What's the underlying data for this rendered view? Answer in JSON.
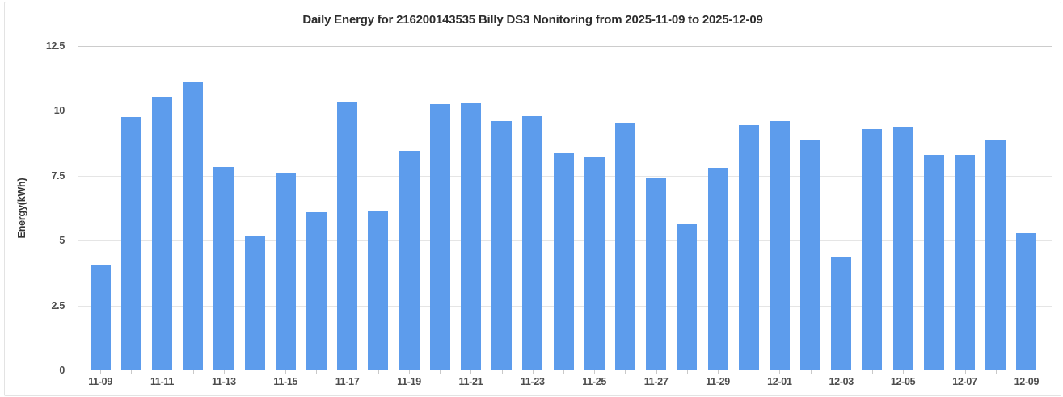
{
  "chart_data": {
    "type": "bar",
    "title": "Daily Energy for 216200143535 Billy DS3 Nonitoring from 2025-11-09 to 2025-12-09",
    "xlabel": "",
    "ylabel": "Energy(kWh)",
    "ylim": [
      0,
      12.5
    ],
    "yticks": [
      0,
      2.5,
      5,
      7.5,
      10,
      12.5
    ],
    "grid": true,
    "legend": false,
    "bar_color": "#5d9cec",
    "x_label_every": 2,
    "categories": [
      "11-09",
      "11-10",
      "11-11",
      "11-12",
      "11-13",
      "11-14",
      "11-15",
      "11-16",
      "11-17",
      "11-18",
      "11-19",
      "11-20",
      "11-21",
      "11-22",
      "11-23",
      "11-24",
      "11-25",
      "11-26",
      "11-27",
      "11-28",
      "11-29",
      "11-30",
      "12-01",
      "12-02",
      "12-03",
      "12-04",
      "12-05",
      "12-06",
      "12-07",
      "12-08",
      "12-09"
    ],
    "values": [
      4.05,
      9.75,
      10.55,
      11.1,
      7.85,
      5.15,
      7.6,
      6.1,
      10.35,
      6.15,
      8.45,
      10.25,
      10.3,
      9.6,
      9.8,
      8.4,
      8.2,
      9.55,
      7.4,
      5.65,
      7.8,
      9.45,
      9.6,
      8.85,
      4.4,
      9.3,
      9.35,
      8.3,
      8.3,
      8.9,
      5.3
    ]
  }
}
